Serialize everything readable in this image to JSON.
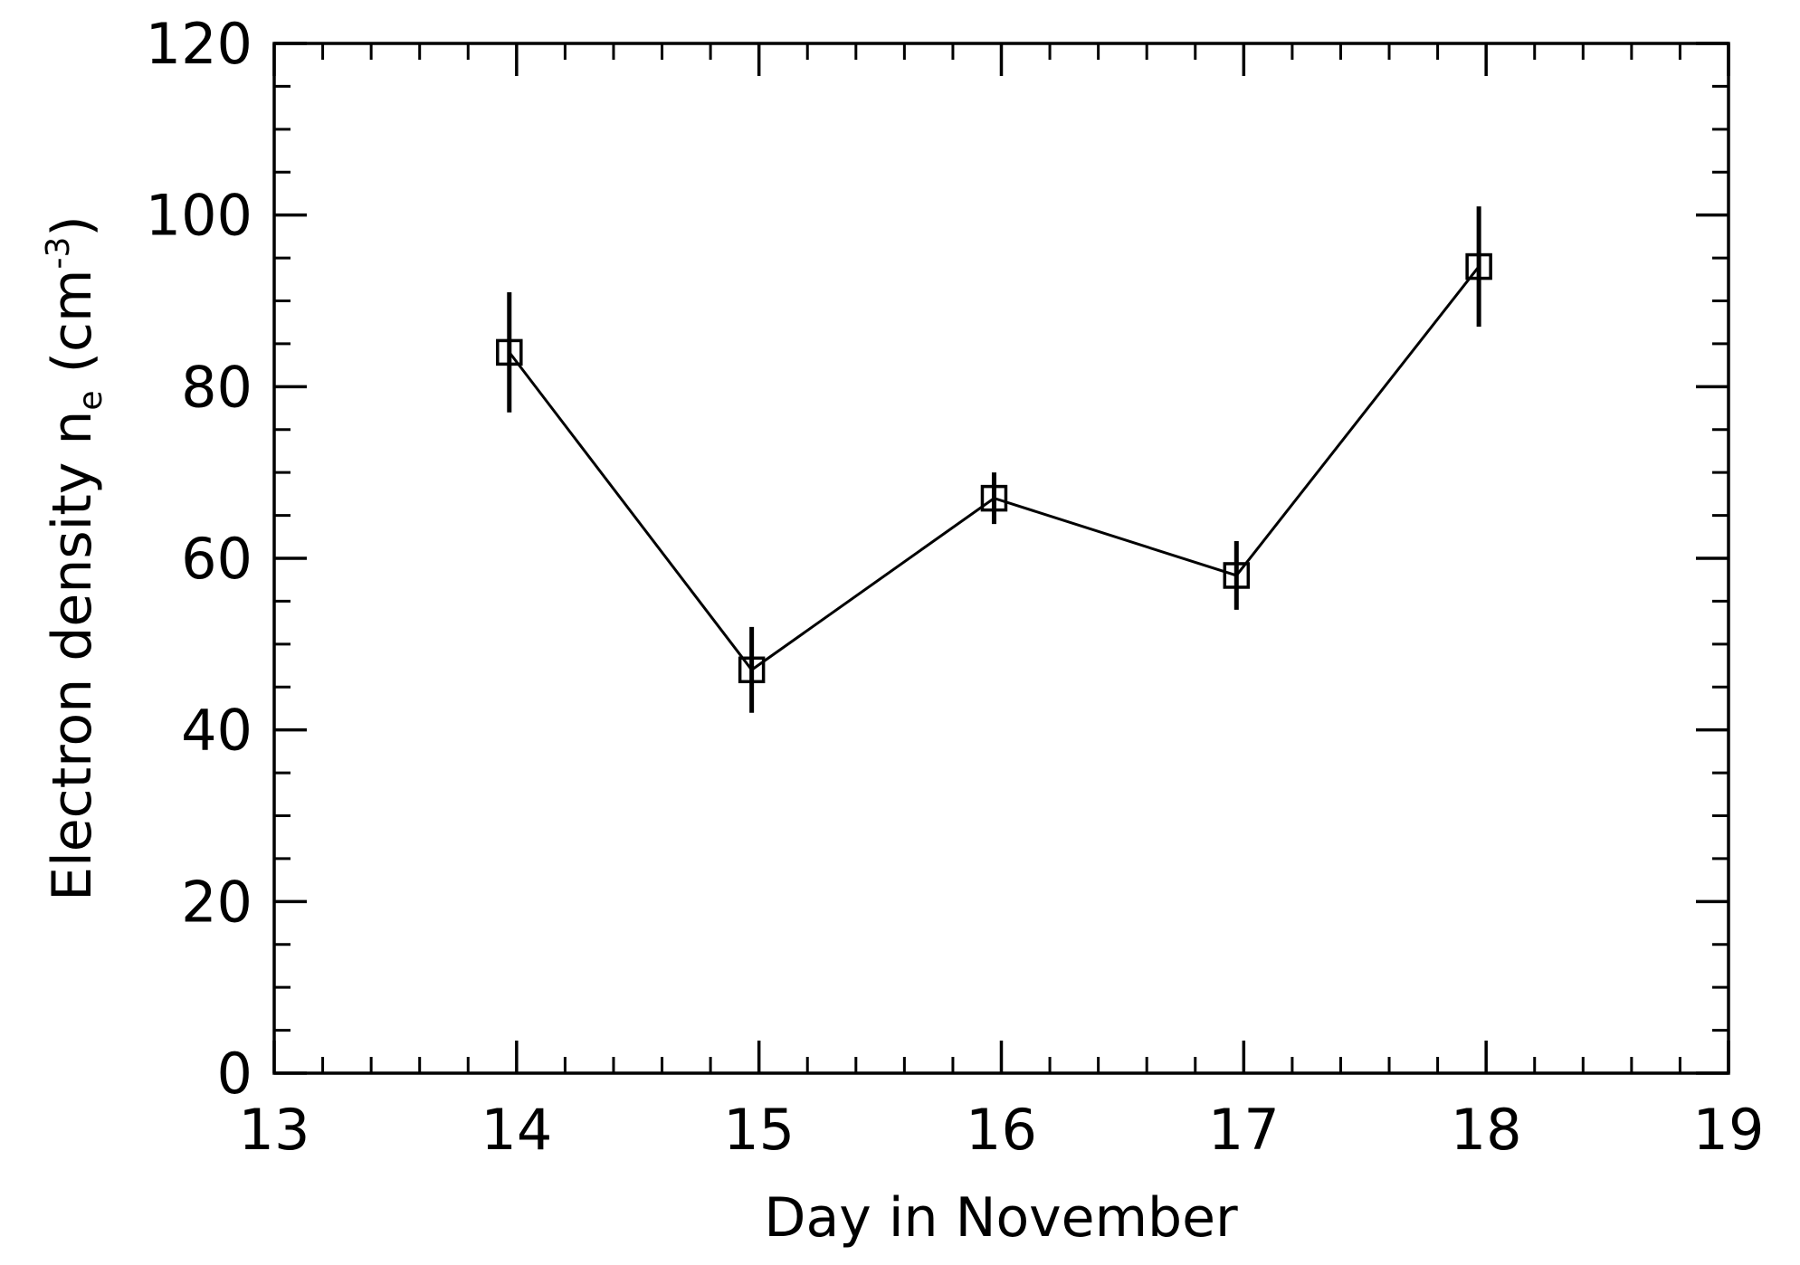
{
  "chart_data": {
    "type": "scatter",
    "xlabel": "Day in November",
    "ylabel": {
      "main": "Electron density n",
      "subscript": "e",
      "unit_open": " (cm",
      "unit_exp": "-3",
      "unit_close": ")"
    },
    "xlim": [
      13,
      19
    ],
    "ylim": [
      0,
      120
    ],
    "x_ticks": [
      13,
      14,
      15,
      16,
      17,
      18,
      19
    ],
    "y_ticks": [
      0,
      20,
      40,
      60,
      80,
      100,
      120
    ],
    "x_minor_step": 0.2,
    "y_minor_step": 5,
    "grid": false,
    "marker": "open-square",
    "connected": true,
    "series": [
      {
        "points": [
          {
            "x": 13.97,
            "y": 84,
            "err_low": 77,
            "err_high": 91
          },
          {
            "x": 14.97,
            "y": 47,
            "err_low": 42,
            "err_high": 52
          },
          {
            "x": 15.97,
            "y": 67,
            "err_low": 64,
            "err_high": 70
          },
          {
            "x": 16.97,
            "y": 58,
            "err_low": 54,
            "err_high": 62
          },
          {
            "x": 17.97,
            "y": 94,
            "err_low": 87,
            "err_high": 101
          }
        ]
      }
    ],
    "colors": {
      "line": "#000000",
      "background": "#ffffff"
    }
  }
}
